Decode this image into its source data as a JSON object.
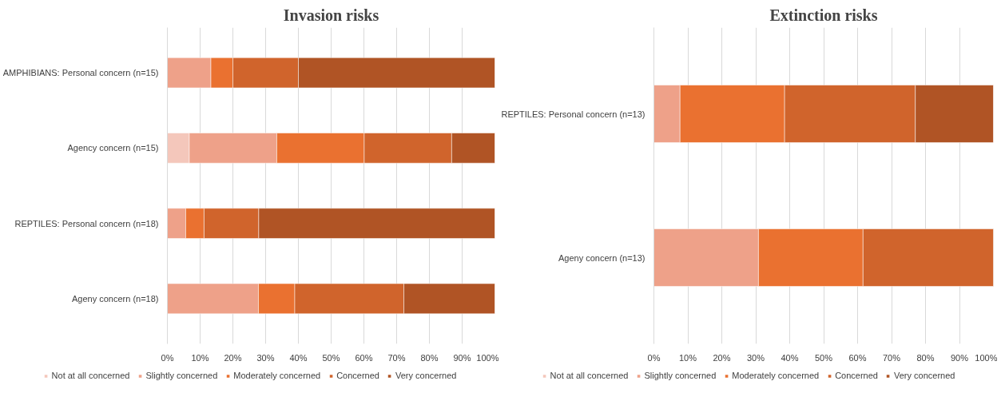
{
  "chart_data": [
    {
      "type": "bar",
      "orientation": "horizontal",
      "stacked": true,
      "title": "Invasion risks",
      "categories": [
        "AMPHIBIANS: Personal concern (n=15)",
        "Agency concern (n=15)",
        "REPTILES: Personal concern (n=18)",
        "Ageny concern (n=18)"
      ],
      "series": [
        {
          "name": "Not at all concerned",
          "color": "#f4c7bb",
          "values": [
            0,
            6.7,
            0,
            0
          ]
        },
        {
          "name": "Slightly concerned",
          "color": "#eea189",
          "values": [
            13.3,
            26.7,
            5.6,
            27.8
          ]
        },
        {
          "name": "Moderately concerned",
          "color": "#ea7130",
          "values": [
            6.7,
            26.7,
            5.6,
            11.1
          ]
        },
        {
          "name": "Concerned",
          "color": "#d0642c",
          "values": [
            20,
            26.7,
            16.7,
            33.3
          ]
        },
        {
          "name": "Very concerned",
          "color": "#b05425",
          "values": [
            60,
            13.3,
            72.2,
            27.8
          ]
        }
      ],
      "xlim": [
        0,
        100
      ],
      "xticks": [
        {
          "value": 0,
          "label": "0%"
        },
        {
          "value": 10,
          "label": "10%"
        },
        {
          "value": 20,
          "label": "20%"
        },
        {
          "value": 30,
          "label": "30%"
        },
        {
          "value": 40,
          "label": "40%"
        },
        {
          "value": 50,
          "label": "50%"
        },
        {
          "value": 60,
          "label": "60%"
        },
        {
          "value": 70,
          "label": "70%"
        },
        {
          "value": 80,
          "label": "80%"
        },
        {
          "value": 90,
          "label": "90%"
        },
        {
          "value": 100,
          "label": "100%"
        }
      ],
      "grid": "x",
      "legend": "bottom"
    },
    {
      "type": "bar",
      "orientation": "horizontal",
      "stacked": true,
      "title": "Extinction risks",
      "categories": [
        "REPTILES: Personal concern (n=13)",
        "Ageny concern (n=13)"
      ],
      "series": [
        {
          "name": "Not at all concerned",
          "color": "#f4c7bb",
          "values": [
            0,
            0
          ]
        },
        {
          "name": "Slightly concerned",
          "color": "#eea189",
          "values": [
            7.7,
            30.8
          ]
        },
        {
          "name": "Moderately concerned",
          "color": "#ea7130",
          "values": [
            30.8,
            30.8
          ]
        },
        {
          "name": "Concerned",
          "color": "#d0642c",
          "values": [
            38.5,
            38.5
          ]
        },
        {
          "name": "Very concerned",
          "color": "#b05425",
          "values": [
            23.1,
            0
          ]
        }
      ],
      "xlim": [
        0,
        100
      ],
      "xticks": [
        {
          "value": 0,
          "label": "0%"
        },
        {
          "value": 10,
          "label": "10%"
        },
        {
          "value": 20,
          "label": "20%"
        },
        {
          "value": 30,
          "label": "30%"
        },
        {
          "value": 40,
          "label": "40%"
        },
        {
          "value": 50,
          "label": "50%"
        },
        {
          "value": 60,
          "label": "60%"
        },
        {
          "value": 70,
          "label": "70%"
        },
        {
          "value": 80,
          "label": "80%"
        },
        {
          "value": 90,
          "label": "90%"
        },
        {
          "value": 100,
          "label": "100%"
        }
      ],
      "grid": "x",
      "legend": "bottom"
    }
  ]
}
